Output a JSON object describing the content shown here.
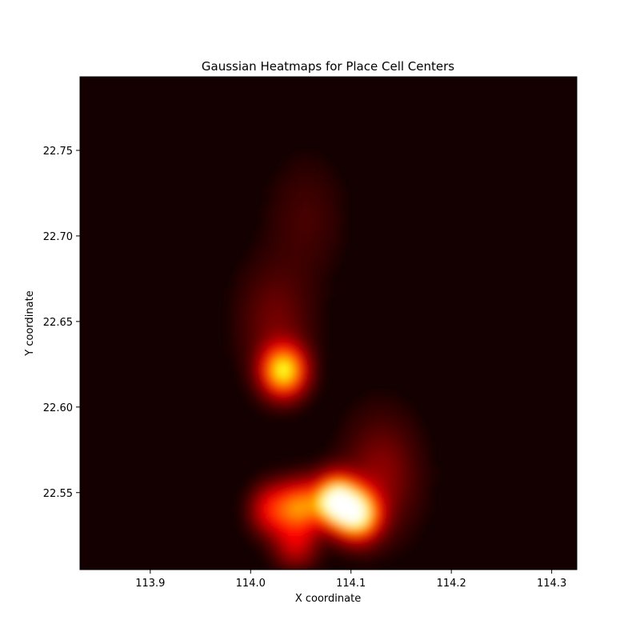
{
  "chart_data": {
    "type": "heatmap",
    "title": "Gaussian Heatmaps for Place Cell Centers",
    "xlabel": "X coordinate",
    "ylabel": "Y coordinate",
    "xlim": [
      113.83,
      114.325
    ],
    "ylim": [
      22.505,
      22.793
    ],
    "xticks": [
      113.9,
      114.0,
      114.1,
      114.2,
      114.3
    ],
    "yticks": [
      22.55,
      22.6,
      22.65,
      22.7,
      22.75
    ],
    "xtick_labels": [
      "113.9",
      "114.0",
      "114.1",
      "114.2",
      "114.3"
    ],
    "ytick_labels": [
      "22.55",
      "22.60",
      "22.65",
      "22.70",
      "22.75"
    ],
    "colormap": "hot",
    "background_color": "#140000",
    "grid": false,
    "hotspots": [
      {
        "x": 114.085,
        "y": 22.545,
        "intensity": 1.0
      },
      {
        "x": 114.107,
        "y": 22.537,
        "intensity": 0.85
      },
      {
        "x": 114.033,
        "y": 22.621,
        "intensity": 0.8
      },
      {
        "x": 114.05,
        "y": 22.542,
        "intensity": 0.55
      },
      {
        "x": 114.022,
        "y": 22.54,
        "intensity": 0.4
      },
      {
        "x": 114.045,
        "y": 22.52,
        "intensity": 0.3
      },
      {
        "x": 114.13,
        "y": 22.56,
        "intensity": 0.2
      },
      {
        "x": 114.025,
        "y": 22.65,
        "intensity": 0.15
      },
      {
        "x": 114.055,
        "y": 22.71,
        "intensity": 0.08
      }
    ]
  }
}
